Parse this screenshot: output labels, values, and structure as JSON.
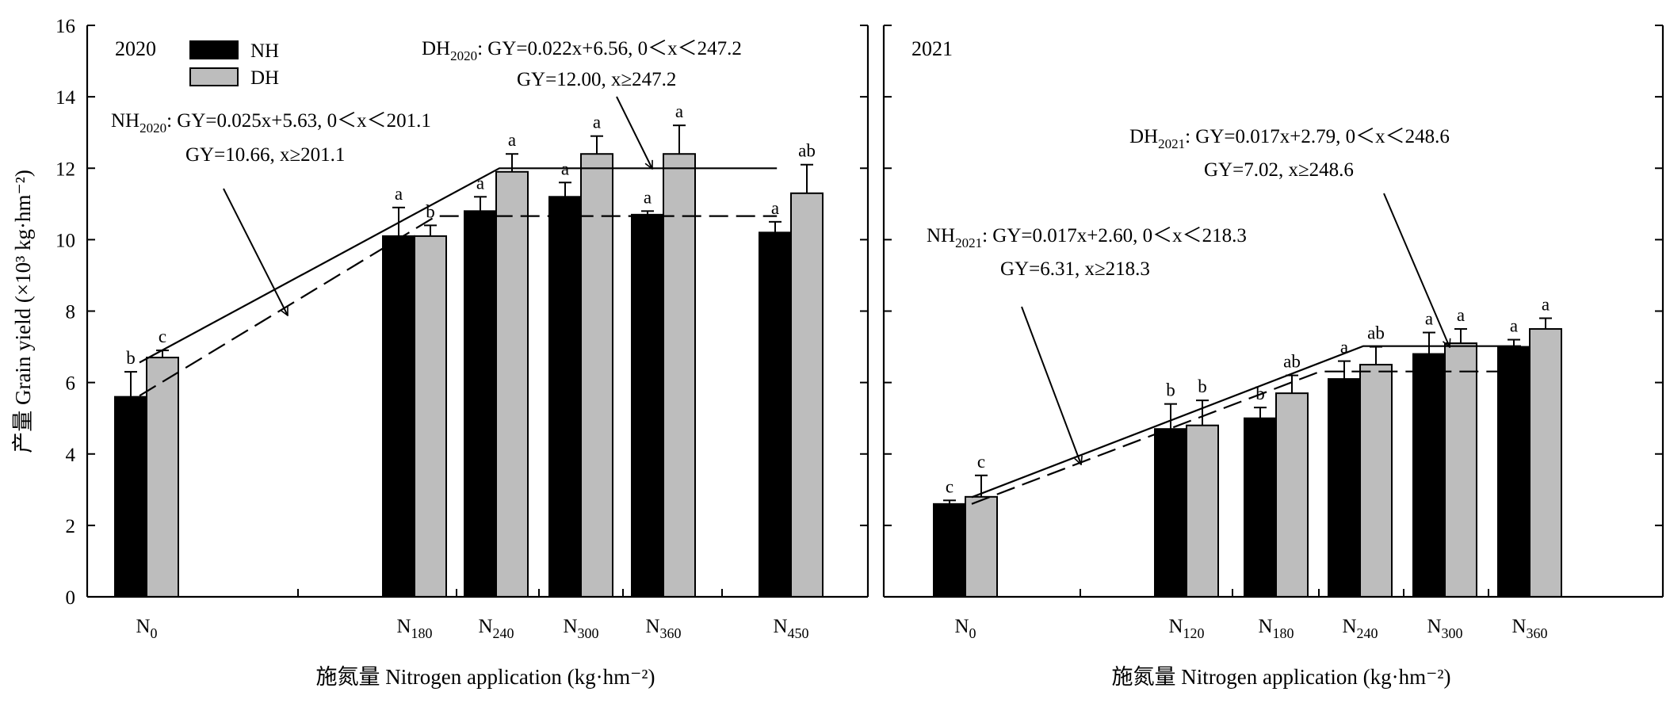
{
  "figure": {
    "ylabel": "产量 Grain yield (×10³ kg·hm⁻²)",
    "yticks": [
      "0",
      "2",
      "4",
      "6",
      "8",
      "10",
      "12",
      "14",
      "16"
    ],
    "legend": [
      {
        "name": "NH",
        "color": "#000000"
      },
      {
        "name": "DH",
        "color": "#bdbdbd"
      }
    ],
    "colors": {
      "NH": "#000000",
      "DH": "#bdbdbd",
      "axis": "#000000"
    }
  },
  "chart_data": [
    {
      "type": "bar",
      "panel_label": "2020",
      "xlabel": "施氮量 Nitrogen application (kg·hm⁻²)",
      "ylim": [
        0,
        16
      ],
      "x_domain": [
        0,
        450
      ],
      "categories": [
        {
          "base": "N",
          "sub": "0",
          "x": 0
        },
        {
          "base": "N",
          "sub": "180",
          "x": 180
        },
        {
          "base": "N",
          "sub": "240",
          "x": 240
        },
        {
          "base": "N",
          "sub": "300",
          "x": 300
        },
        {
          "base": "N",
          "sub": "360",
          "x": 360
        },
        {
          "base": "N",
          "sub": "450",
          "x": 450
        }
      ],
      "series": [
        {
          "name": "NH",
          "values": [
            5.6,
            10.1,
            10.8,
            11.2,
            10.7,
            10.2
          ],
          "errors": [
            0.7,
            0.8,
            0.4,
            0.4,
            0.1,
            0.3
          ],
          "letters": [
            "b",
            "a",
            "a",
            "a",
            "a",
            "a"
          ]
        },
        {
          "name": "DH",
          "values": [
            6.7,
            10.1,
            11.9,
            12.4,
            12.4,
            11.3
          ],
          "errors": [
            0.2,
            0.3,
            0.5,
            0.5,
            0.8,
            0.8
          ],
          "letters": [
            "c",
            "b",
            "a",
            "a",
            "a",
            "ab"
          ]
        }
      ],
      "fits": [
        {
          "series": "NH",
          "slope": 0.025,
          "intercept": 5.63,
          "breakpoint": 201.1,
          "plateau": 10.66,
          "style": "dashed"
        },
        {
          "series": "DH",
          "slope": 0.022,
          "intercept": 6.56,
          "breakpoint": 247.2,
          "plateau": 12.0,
          "style": "solid"
        }
      ],
      "annotations": [
        {
          "id": "nh",
          "label": "NH",
          "year": "2020",
          "line1": ": GY=0.025x+5.63, 0＜x＜201.1",
          "line2": "GY=10.66, x≥201.1"
        },
        {
          "id": "dh",
          "label": "DH",
          "year": "2020",
          "line1": ": GY=0.022x+6.56, 0＜x＜247.2",
          "line2": "GY=12.00, x≥247.2"
        }
      ]
    },
    {
      "type": "bar",
      "panel_label": "2021",
      "xlabel": "施氮量 Nitrogen application (kg·hm⁻²)",
      "ylim": [
        0,
        16
      ],
      "x_domain": [
        0,
        360
      ],
      "categories": [
        {
          "base": "N",
          "sub": "0",
          "x": 0
        },
        {
          "base": "N",
          "sub": "120",
          "x": 120
        },
        {
          "base": "N",
          "sub": "180",
          "x": 180
        },
        {
          "base": "N",
          "sub": "240",
          "x": 240
        },
        {
          "base": "N",
          "sub": "300",
          "x": 300
        },
        {
          "base": "N",
          "sub": "360",
          "x": 360
        }
      ],
      "series": [
        {
          "name": "NH",
          "values": [
            2.6,
            4.7,
            5.0,
            6.1,
            6.8,
            7.0
          ],
          "errors": [
            0.1,
            0.7,
            0.3,
            0.5,
            0.6,
            0.2
          ],
          "letters": [
            "c",
            "b",
            "b",
            "a",
            "a",
            "a"
          ]
        },
        {
          "name": "DH",
          "values": [
            2.8,
            4.8,
            5.7,
            6.5,
            7.1,
            7.5
          ],
          "errors": [
            0.6,
            0.7,
            0.5,
            0.5,
            0.4,
            0.3
          ],
          "letters": [
            "c",
            "b",
            "ab",
            "ab",
            "a",
            "a"
          ]
        }
      ],
      "fits": [
        {
          "series": "NH",
          "slope": 0.017,
          "intercept": 2.6,
          "breakpoint": 218.3,
          "plateau": 6.31,
          "style": "dashed"
        },
        {
          "series": "DH",
          "slope": 0.017,
          "intercept": 2.79,
          "breakpoint": 248.6,
          "plateau": 7.02,
          "style": "solid"
        }
      ],
      "annotations": [
        {
          "id": "nh",
          "label": "NH",
          "year": "2021",
          "line1": ": GY=0.017x+2.60, 0＜x＜218.3",
          "line2": "GY=6.31, x≥218.3"
        },
        {
          "id": "dh",
          "label": "DH",
          "year": "2021",
          "line1": ": GY=0.017x+2.79, 0＜x＜248.6",
          "line2": "GY=7.02, x≥248.6"
        }
      ]
    }
  ]
}
